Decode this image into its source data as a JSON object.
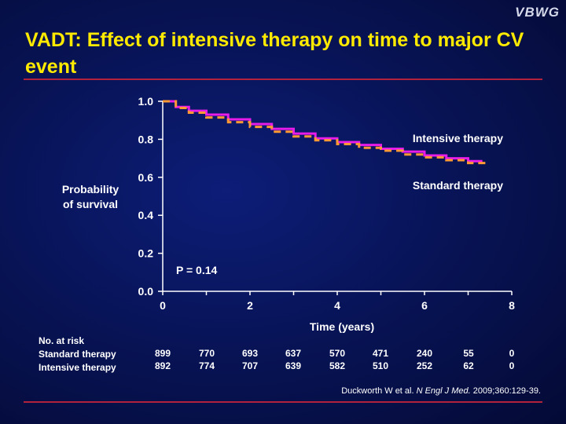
{
  "logo": "VBWG",
  "title": "VADT: Effect of intensive therapy on time to major CV event",
  "y_axis_label": [
    "Probability",
    "of survival"
  ],
  "chart_data": {
    "type": "line",
    "xlabel": "Time (years)",
    "xlim": [
      0,
      8
    ],
    "ylim": [
      0.0,
      1.0
    ],
    "x_ticks": [
      "0",
      "2",
      "4",
      "6",
      "8"
    ],
    "y_ticks": [
      "0.0",
      "0.2",
      "0.4",
      "0.6",
      "0.8",
      "1.0"
    ],
    "annotation": "P = 0.14",
    "series": [
      {
        "name": "Intensive therapy",
        "color": "#e81ce8",
        "style": "solid",
        "x": [
          0,
          0.3,
          0.6,
          1.0,
          1.5,
          2.0,
          2.5,
          3.0,
          3.5,
          4.0,
          4.5,
          5.0,
          5.5,
          6.0,
          6.5,
          7.0,
          7.3
        ],
        "y": [
          1.0,
          0.97,
          0.95,
          0.93,
          0.905,
          0.88,
          0.855,
          0.83,
          0.805,
          0.785,
          0.77,
          0.75,
          0.735,
          0.715,
          0.7,
          0.685,
          0.67
        ]
      },
      {
        "name": "Standard therapy",
        "color": "#ff9933",
        "style": "dashed",
        "x": [
          0,
          0.3,
          0.6,
          1.0,
          1.5,
          2.0,
          2.5,
          3.0,
          3.5,
          4.0,
          4.5,
          5.0,
          5.5,
          6.0,
          6.5,
          7.0,
          7.4
        ],
        "y": [
          1.0,
          0.965,
          0.94,
          0.915,
          0.89,
          0.865,
          0.84,
          0.815,
          0.795,
          0.775,
          0.755,
          0.74,
          0.72,
          0.705,
          0.69,
          0.675,
          0.655
        ]
      }
    ]
  },
  "risk_table": {
    "header": "No. at risk",
    "rows": [
      {
        "label": "Standard therapy",
        "values": [
          "899",
          "770",
          "693",
          "637",
          "570",
          "471",
          "240",
          "55",
          "0"
        ]
      },
      {
        "label": "Intensive therapy",
        "values": [
          "892",
          "774",
          "707",
          "639",
          "582",
          "510",
          "252",
          "62",
          "0"
        ]
      }
    ]
  },
  "citation": {
    "pre": "Duckworth W et al. ",
    "journal": "N Engl J Med.",
    "post": " 2009;360:129-39."
  }
}
